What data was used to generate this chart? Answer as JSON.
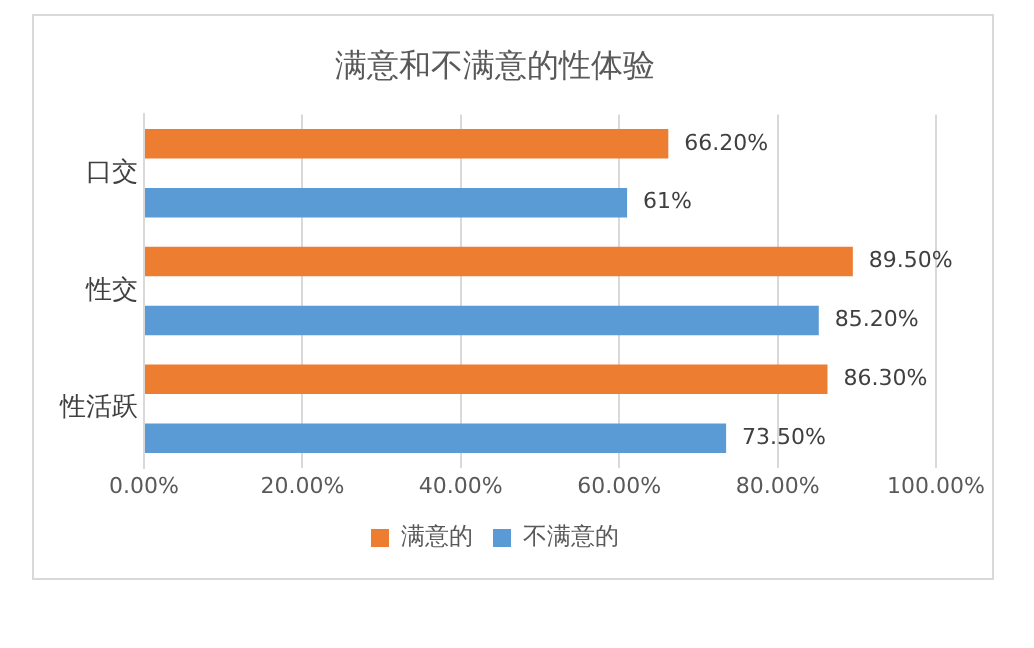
{
  "chart_data": {
    "type": "bar",
    "orientation": "horizontal",
    "title": "满意和不满意的性体验",
    "categories": [
      "口交",
      "性交",
      "性活跃"
    ],
    "series": [
      {
        "name": "满意的",
        "color": "#ed7d31",
        "values": [
          66.2,
          89.5,
          86.3
        ],
        "value_labels": [
          "66.20%",
          "89.50%",
          "86.30%"
        ]
      },
      {
        "name": "不满意的",
        "color": "#5b9bd5",
        "values": [
          61,
          85.2,
          73.5
        ],
        "value_labels": [
          "61%",
          "85.20%",
          "73.50%"
        ]
      }
    ],
    "xlim": [
      0,
      100
    ],
    "xticks": [
      {
        "value": 0,
        "label": "0.00%"
      },
      {
        "value": 20,
        "label": "20.00%"
      },
      {
        "value": 40,
        "label": "40.00%"
      },
      {
        "value": 60,
        "label": "60.00%"
      },
      {
        "value": 80,
        "label": "80.00%"
      },
      {
        "value": 100,
        "label": "100.00%"
      }
    ],
    "grid": "x",
    "legend": "bottom"
  }
}
